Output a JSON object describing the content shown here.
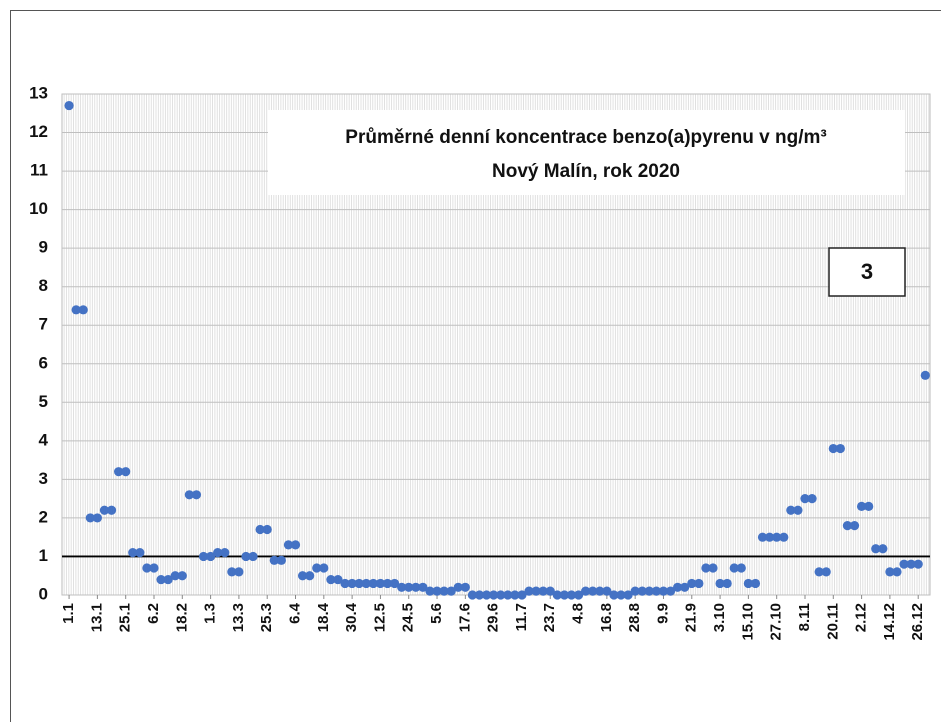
{
  "chart_data": {
    "type": "scatter",
    "title": "Průměrné denní koncentrace benzo(a)pyrenu v ng/m³",
    "subtitle": "Nový Malín, rok 2020",
    "annotations": [
      "3"
    ],
    "color": "#4472c4",
    "reference_line": 1,
    "grid": true,
    "xlim": [
      -2,
      366
    ],
    "ylim": [
      0,
      13
    ],
    "yticks": [
      0,
      1,
      2,
      3,
      4,
      5,
      6,
      7,
      8,
      9,
      10,
      11,
      12,
      13
    ],
    "xticks": [
      {
        "value": 1,
        "label": "1.1"
      },
      {
        "value": 13,
        "label": "13.1"
      },
      {
        "value": 25,
        "label": "25.1"
      },
      {
        "value": 37,
        "label": "6.2"
      },
      {
        "value": 49,
        "label": "18.2"
      },
      {
        "value": 61,
        "label": "1.3"
      },
      {
        "value": 73,
        "label": "13.3"
      },
      {
        "value": 85,
        "label": "25.3"
      },
      {
        "value": 97,
        "label": "6.4"
      },
      {
        "value": 109,
        "label": "18.4"
      },
      {
        "value": 121,
        "label": "30.4"
      },
      {
        "value": 133,
        "label": "12.5"
      },
      {
        "value": 145,
        "label": "24.5"
      },
      {
        "value": 157,
        "label": "5.6"
      },
      {
        "value": 169,
        "label": "17.6"
      },
      {
        "value": 181,
        "label": "29.6"
      },
      {
        "value": 193,
        "label": "11.7"
      },
      {
        "value": 205,
        "label": "23.7"
      },
      {
        "value": 217,
        "label": "4.8"
      },
      {
        "value": 229,
        "label": "16.8"
      },
      {
        "value": 241,
        "label": "28.8"
      },
      {
        "value": 253,
        "label": "9.9"
      },
      {
        "value": 265,
        "label": "21.9"
      },
      {
        "value": 277,
        "label": "3.10"
      },
      {
        "value": 289,
        "label": "15.10"
      },
      {
        "value": 301,
        "label": "27.10"
      },
      {
        "value": 313,
        "label": "8.11"
      },
      {
        "value": 325,
        "label": "20.11"
      },
      {
        "value": 337,
        "label": "2.12"
      },
      {
        "value": 349,
        "label": "14.12"
      },
      {
        "value": 361,
        "label": "26.12"
      }
    ],
    "x": [
      1,
      4,
      7,
      10,
      13,
      16,
      19,
      22,
      25,
      28,
      31,
      34,
      37,
      40,
      43,
      46,
      49,
      52,
      55,
      58,
      61,
      64,
      67,
      70,
      73,
      76,
      79,
      82,
      85,
      88,
      91,
      94,
      97,
      100,
      103,
      106,
      109,
      112,
      115,
      118,
      121,
      124,
      127,
      130,
      133,
      136,
      139,
      142,
      145,
      148,
      151,
      154,
      157,
      160,
      163,
      166,
      169,
      172,
      175,
      178,
      181,
      184,
      187,
      190,
      193,
      196,
      199,
      202,
      205,
      208,
      211,
      214,
      217,
      220,
      223,
      226,
      229,
      232,
      235,
      238,
      241,
      244,
      247,
      250,
      253,
      256,
      259,
      262,
      265,
      268,
      271,
      274,
      277,
      280,
      283,
      286,
      289,
      292,
      295,
      298,
      301,
      304,
      307,
      310,
      313,
      316,
      319,
      322,
      325,
      328,
      331,
      334,
      337,
      340,
      343,
      346,
      349,
      352,
      355,
      358,
      361,
      364
    ],
    "values": [
      12.7,
      7.4,
      7.4,
      2,
      2,
      2.2,
      2.2,
      3.2,
      3.2,
      1.1,
      1.1,
      0.7,
      0.7,
      0.4,
      0.4,
      0.5,
      0.5,
      2.6,
      2.6,
      1,
      1,
      1.1,
      1.1,
      0.6,
      0.6,
      1,
      1,
      1.7,
      1.7,
      0.9,
      0.9,
      1.3,
      1.3,
      0.5,
      0.5,
      0.7,
      0.7,
      0.4,
      0.4,
      0.3,
      0.3,
      0.3,
      0.3,
      0.3,
      0.3,
      0.3,
      0.3,
      0.2,
      0.2,
      0.2,
      0.2,
      0.1,
      0.1,
      0.1,
      0.1,
      0.2,
      0.2,
      0,
      0,
      0,
      0,
      0,
      0,
      0,
      0,
      0.1,
      0.1,
      0.1,
      0.1,
      0,
      0,
      0,
      0,
      0.1,
      0.1,
      0.1,
      0.1,
      0,
      0,
      0,
      0.1,
      0.1,
      0.1,
      0.1,
      0.1,
      0.1,
      0.2,
      0.2,
      0.3,
      0.3,
      0.7,
      0.7,
      0.3,
      0.3,
      0.7,
      0.7,
      0.3,
      0.3,
      1.5,
      1.5,
      1.5,
      1.5,
      2.2,
      2.2,
      2.5,
      2.5,
      0.6,
      0.6,
      3.8,
      3.8,
      1.8,
      1.8,
      2.3,
      2.3,
      1.2,
      1.2,
      0.6,
      0.6,
      0.8,
      0.8,
      0.8,
      5.7
    ]
  }
}
